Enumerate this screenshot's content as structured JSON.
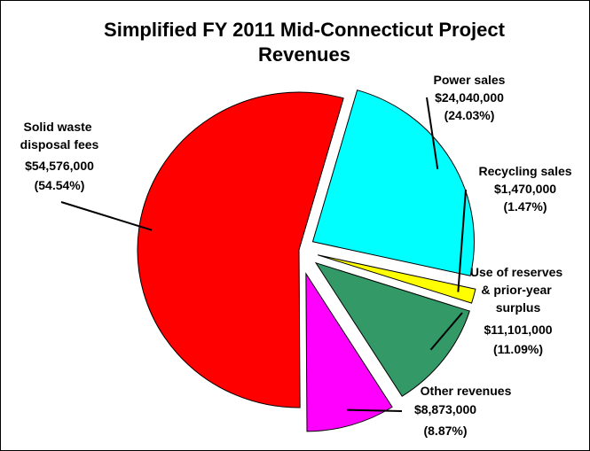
{
  "chart_data": {
    "type": "pie",
    "title_lines": [
      "Simplified FY 2011 Mid-Connecticut Project",
      "Revenues"
    ],
    "slices": [
      {
        "name": "Power sales",
        "value": 24040000,
        "value_label": "$24,040,000",
        "percent_label": "(24.03%)",
        "color": "#00FFFF"
      },
      {
        "name": "Recycling sales",
        "value": 1470000,
        "value_label": "$1,470,000",
        "percent_label": "(1.47%)",
        "color": "#FFFF00"
      },
      {
        "name": "Use of reserves & prior-year surplus",
        "value": 11101000,
        "value_label": "$11,101,000",
        "percent_label": "(11.09%)",
        "color": "#339966"
      },
      {
        "name": "Other revenues",
        "value": 8873000,
        "value_label": "$8,873,000",
        "percent_label": "(8.87%)",
        "color": "#FF00FF"
      },
      {
        "name": "Solid waste disposal fees",
        "value": 54576000,
        "value_label": "$54,576,000",
        "percent_label": "(54.54%)",
        "color": "#FF0000"
      }
    ]
  }
}
